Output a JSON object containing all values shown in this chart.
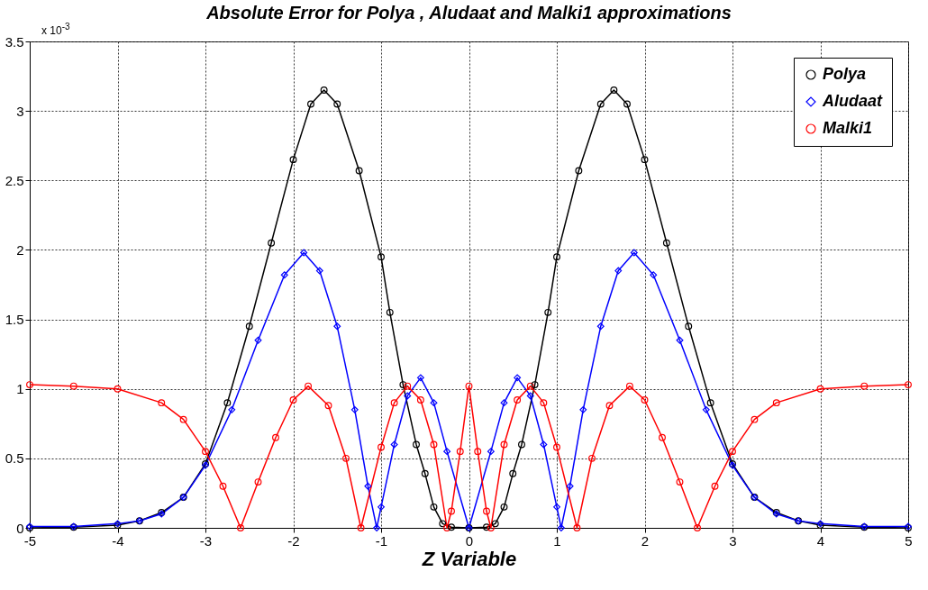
{
  "chart_data": {
    "type": "line",
    "title": "Absolute Error for Polya , Aludaat and Malki1 approximations",
    "xlabel": "Z Variable",
    "annotations": [
      "x 10$^{-3}$"
    ],
    "xlim": [
      -5,
      5
    ],
    "xticks": [
      -5,
      -4,
      -3,
      -2,
      -1,
      0,
      1,
      2,
      3,
      4,
      5
    ],
    "ylim": [
      0,
      3.5
    ],
    "yticks": [
      0,
      0.5,
      1,
      1.5,
      2,
      2.5,
      3,
      3.5
    ],
    "grid": true,
    "legend": "top right",
    "series": [
      {
        "name": "Polya",
        "color": "#000000",
        "marker": "circle",
        "x": [
          -5,
          -4.5,
          -4,
          -3.75,
          -3.5,
          -3.25,
          -3,
          -2.75,
          -2.5,
          -2.25,
          -2,
          -1.8,
          -1.65,
          -1.5,
          -1.25,
          -1,
          -0.9,
          -0.75,
          -0.6,
          -0.5,
          -0.4,
          -0.3,
          -0.2,
          0,
          0.2,
          0.3,
          0.4,
          0.5,
          0.6,
          0.75,
          0.9,
          1,
          1.25,
          1.5,
          1.65,
          1.8,
          2,
          2.25,
          2.5,
          2.75,
          3,
          3.25,
          3.5,
          3.75,
          4,
          4.5,
          5
        ],
        "values": [
          0,
          0.005,
          0.02,
          0.05,
          0.11,
          0.22,
          0.46,
          0.9,
          1.45,
          2.05,
          2.65,
          3.05,
          3.15,
          3.05,
          2.57,
          1.95,
          1.55,
          1.03,
          0.6,
          0.39,
          0.15,
          0.03,
          0.005,
          0,
          0.005,
          0.03,
          0.15,
          0.39,
          0.6,
          1.03,
          1.55,
          1.95,
          2.57,
          3.05,
          3.15,
          3.05,
          2.65,
          2.05,
          1.45,
          0.9,
          0.46,
          0.22,
          0.11,
          0.05,
          0.02,
          0.005,
          0
        ]
      },
      {
        "name": "Aludaat",
        "color": "#0000ff",
        "marker": "diamond",
        "x": [
          -5,
          -4.5,
          -4,
          -3.75,
          -3.5,
          -3.25,
          -3,
          -2.7,
          -2.4,
          -2.1,
          -1.88,
          -1.7,
          -1.5,
          -1.3,
          -1.15,
          -1.05,
          -1,
          -0.85,
          -0.7,
          -0.55,
          -0.4,
          -0.25,
          0,
          0.25,
          0.4,
          0.55,
          0.7,
          0.85,
          1,
          1.05,
          1.15,
          1.3,
          1.5,
          1.7,
          1.88,
          2.1,
          2.4,
          2.7,
          3,
          3.25,
          3.5,
          3.75,
          4,
          4.5,
          5
        ],
        "values": [
          0.01,
          0.01,
          0.03,
          0.05,
          0.1,
          0.22,
          0.45,
          0.85,
          1.35,
          1.82,
          1.98,
          1.85,
          1.45,
          0.85,
          0.3,
          0,
          0.15,
          0.6,
          0.95,
          1.08,
          0.9,
          0.55,
          0,
          0.55,
          0.9,
          1.08,
          0.95,
          0.6,
          0.15,
          0,
          0.3,
          0.85,
          1.45,
          1.85,
          1.98,
          1.82,
          1.35,
          0.85,
          0.45,
          0.22,
          0.1,
          0.05,
          0.03,
          0.01,
          0.01
        ]
      },
      {
        "name": "Malki1",
        "color": "#ff0000",
        "marker": "circle",
        "x": [
          -5,
          -4.5,
          -4,
          -3.5,
          -3.25,
          -3,
          -2.8,
          -2.6,
          -2.4,
          -2.2,
          -2,
          -1.83,
          -1.6,
          -1.4,
          -1.23,
          -1,
          -0.85,
          -0.7,
          -0.55,
          -0.4,
          -0.25,
          -0.2,
          -0.1,
          0,
          0.1,
          0.2,
          0.25,
          0.4,
          0.55,
          0.7,
          0.85,
          1,
          1.23,
          1.4,
          1.6,
          1.83,
          2,
          2.2,
          2.4,
          2.6,
          2.8,
          3,
          3.25,
          3.5,
          4,
          4.5,
          5
        ],
        "values": [
          1.03,
          1.02,
          1,
          0.9,
          0.78,
          0.55,
          0.3,
          0,
          0.33,
          0.65,
          0.92,
          1.02,
          0.88,
          0.5,
          0,
          0.58,
          0.9,
          1.02,
          0.92,
          0.6,
          0,
          0.12,
          0.55,
          1.02,
          0.55,
          0.12,
          0,
          0.6,
          0.92,
          1.02,
          0.9,
          0.58,
          0,
          0.5,
          0.88,
          1.02,
          0.92,
          0.65,
          0.33,
          0,
          0.3,
          0.55,
          0.78,
          0.9,
          1,
          1.02,
          1.03
        ]
      }
    ]
  }
}
